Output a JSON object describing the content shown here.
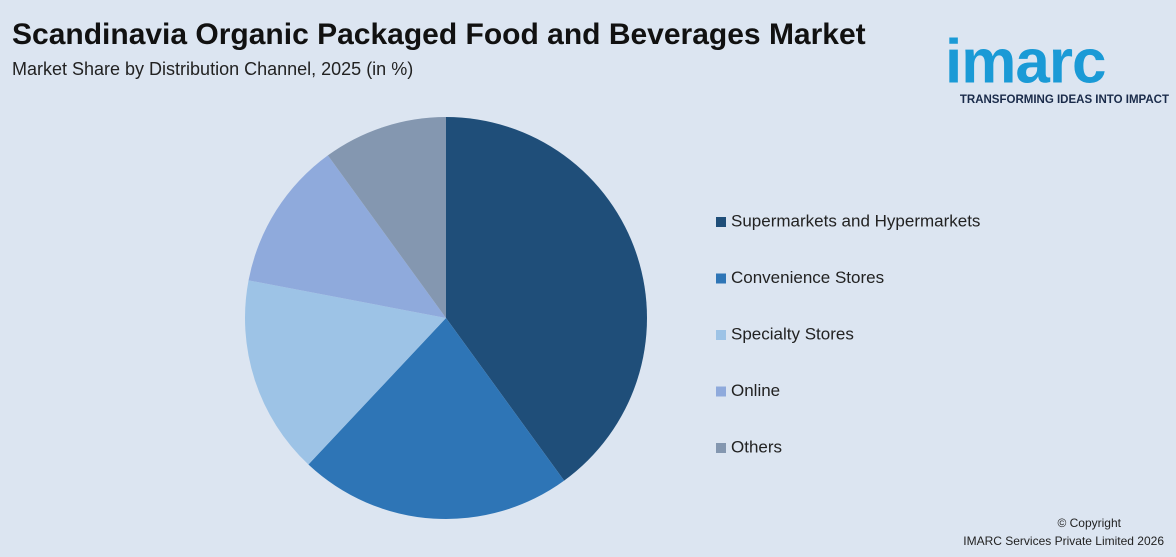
{
  "chart_data": {
    "type": "pie",
    "title": "Scandinavia Organic Packaged Food and Beverages Market",
    "subtitle": "Market Share by Distribution Channel, 2025 (in %)",
    "categories": [
      "Supermarkets and Hypermarkets",
      "Convenience Stores",
      "Specialty Stores",
      "Online",
      "Others"
    ],
    "values": [
      40,
      22,
      16,
      12,
      10
    ],
    "colors": [
      "#1f4e79",
      "#2e75b6",
      "#9dc3e6",
      "#8faadc",
      "#8497b0"
    ],
    "legend": "right"
  },
  "branding": {
    "logo": "imarc",
    "tagline": "TRANSFORMING IDEAS INTO IMPACT",
    "copyright": "© Copyright",
    "company": "IMARC Services Private Limited 2026"
  }
}
